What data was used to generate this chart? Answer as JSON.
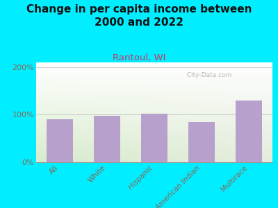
{
  "title": "Change in per capita income between\n2000 and 2022",
  "subtitle": "Rantoul, WI",
  "categories": [
    "All",
    "White",
    "Hispanic",
    "American Indian",
    "Multirace"
  ],
  "values": [
    90,
    98,
    102,
    85,
    130
  ],
  "bar_color": "#b8a0cc",
  "background_outer": "#00eeff",
  "yticks": [
    0,
    100,
    200
  ],
  "ylabels": [
    "0%",
    "100%",
    "200%"
  ],
  "ylim": [
    0,
    210
  ],
  "title_fontsize": 11,
  "subtitle_fontsize": 9.5,
  "subtitle_color": "#cc3366",
  "tick_label_color": "#886655",
  "watermark": "  City-Data.com",
  "watermark_color": "#aaaaaa"
}
